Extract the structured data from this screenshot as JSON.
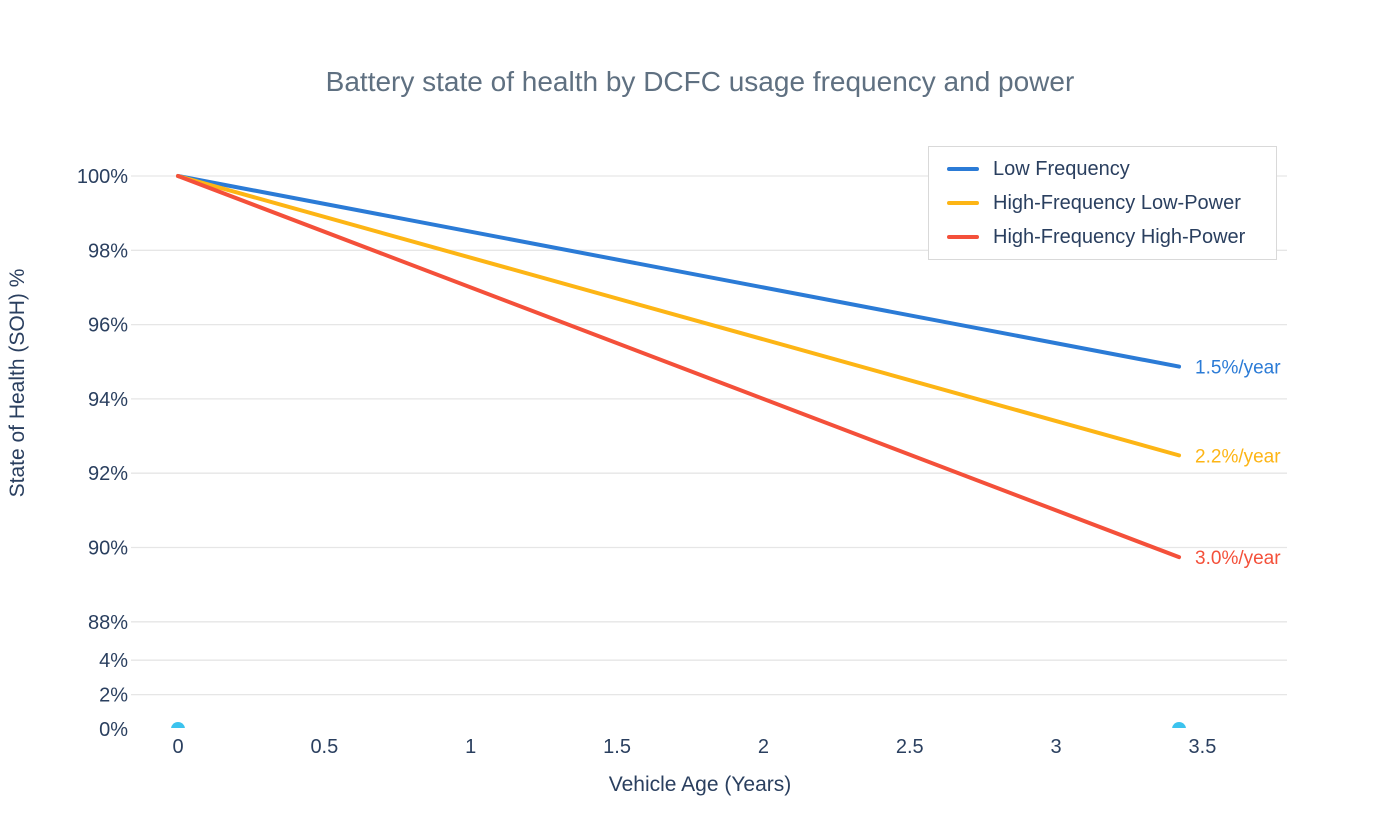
{
  "chart_data": {
    "type": "line",
    "title": "Battery state of health by DCFC usage frequency and power",
    "xlabel": "Vehicle Age (Years)",
    "ylabel": "State of Health (SOH) %",
    "grid": true,
    "legend_position": "top-right",
    "x_range_years": [
      0,
      3.42
    ],
    "y_axis_sections": {
      "upper": {
        "range": [
          88,
          100
        ],
        "tick_step_pct": 2
      },
      "lower": {
        "range": [
          0,
          4
        ],
        "tick_step_pct": 2
      }
    },
    "x_ticks": [
      {
        "label": "0",
        "value": 0
      },
      {
        "label": "0.5",
        "value": 0.5
      },
      {
        "label": "1",
        "value": 1
      },
      {
        "label": "1.5",
        "value": 1.5
      },
      {
        "label": "2",
        "value": 2
      },
      {
        "label": "2.5",
        "value": 2.5
      },
      {
        "label": "3",
        "value": 3
      },
      {
        "label": "3.5",
        "value": 3.5
      }
    ],
    "y_ticks": [
      {
        "label": "100%",
        "value": 100
      },
      {
        "label": "98%",
        "value": 98
      },
      {
        "label": "96%",
        "value": 96
      },
      {
        "label": "94%",
        "value": 94
      },
      {
        "label": "92%",
        "value": 92
      },
      {
        "label": "90%",
        "value": 90
      },
      {
        "label": "88%",
        "value": 88
      },
      {
        "label": "4%",
        "value": 4
      },
      {
        "label": "2%",
        "value": 2
      },
      {
        "label": "0%",
        "value": 0
      }
    ],
    "series": [
      {
        "name": "Low Frequency",
        "color": "#2b7bd6",
        "fade_rate_pct_per_year": 1.5,
        "annotation": "1.5%/year",
        "x": [
          0,
          3.42
        ],
        "y": [
          100,
          94.87
        ]
      },
      {
        "name": "High-Frequency Low-Power",
        "color": "#fdb515",
        "fade_rate_pct_per_year": 2.2,
        "annotation": "2.2%/year",
        "x": [
          0,
          3.42
        ],
        "y": [
          100,
          92.48
        ]
      },
      {
        "name": "High-Frequency High-Power",
        "color": "#f4503a",
        "fade_rate_pct_per_year": 3.0,
        "annotation": "3.0%/year",
        "x": [
          0,
          3.42
        ],
        "y": [
          100,
          89.74
        ]
      }
    ],
    "scatter_markers": {
      "name": "baseline-markers",
      "color": "#3cc3ee",
      "points": [
        {
          "x": 0,
          "y": 0
        },
        {
          "x": 3.42,
          "y": 0
        }
      ]
    }
  }
}
